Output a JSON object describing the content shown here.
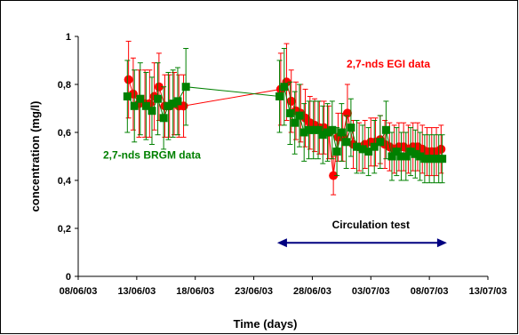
{
  "chart_data": {
    "type": "scatter",
    "xlabel": "Time (days)",
    "ylabel": "concentration (mg/l)",
    "x_tick_labels": [
      "08/06/03",
      "13/06/03",
      "18/06/03",
      "23/06/03",
      "28/06/03",
      "03/07/03",
      "08/07/03",
      "13/07/03"
    ],
    "x_ticks": [
      0,
      5,
      10,
      15,
      20,
      25,
      30,
      35
    ],
    "xlim": [
      0,
      35
    ],
    "ylim": [
      0,
      1
    ],
    "y_ticks": [
      0,
      0.2,
      0.4,
      0.6,
      0.8,
      1
    ],
    "y_tick_labels": [
      "0",
      "0,2",
      "0,4",
      "0,6",
      "0,8",
      "1"
    ],
    "grid": false,
    "colors": {
      "egi": "#ff0000",
      "brgm": "#008000",
      "arrow": "#000080"
    },
    "series": [
      {
        "name": "2,7-nds EGI data",
        "marker": "circle",
        "connected": true,
        "x": [
          4.3,
          4.7,
          5.2,
          5.7,
          6.1,
          6.5,
          6.9,
          7.4,
          7.8,
          8.2,
          8.6,
          9.0,
          17.3,
          17.8,
          18.2,
          18.6,
          19.0,
          19.4,
          19.8,
          20.2,
          20.6,
          21.0,
          21.4,
          21.8,
          22.2,
          22.6,
          23.0,
          23.5,
          24.0,
          24.5,
          25.0,
          25.4,
          25.8,
          26.2,
          26.6,
          27.0,
          27.4,
          27.8,
          28.2,
          28.6,
          29.0,
          29.4,
          29.8,
          30.2,
          30.6,
          31.0
        ],
        "y": [
          0.82,
          0.76,
          0.72,
          0.72,
          0.72,
          0.75,
          0.79,
          0.71,
          0.71,
          0.72,
          0.71,
          0.71,
          0.78,
          0.81,
          0.73,
          0.69,
          0.68,
          0.66,
          0.64,
          0.63,
          0.62,
          0.62,
          0.6,
          0.42,
          0.58,
          0.58,
          0.68,
          0.55,
          0.54,
          0.55,
          0.56,
          0.56,
          0.57,
          0.55,
          0.54,
          0.53,
          0.54,
          0.54,
          0.53,
          0.54,
          0.54,
          0.53,
          0.52,
          0.52,
          0.52,
          0.53
        ],
        "err": [
          0.16,
          0.15,
          0.14,
          0.14,
          0.14,
          0.14,
          0.14,
          0.13,
          0.13,
          0.13,
          0.13,
          0.13,
          0.15,
          0.16,
          0.13,
          0.12,
          0.12,
          0.12,
          0.11,
          0.11,
          0.11,
          0.11,
          0.11,
          0.08,
          0.1,
          0.1,
          0.12,
          0.1,
          0.1,
          0.1,
          0.1,
          0.1,
          0.1,
          0.1,
          0.1,
          0.1,
          0.1,
          0.1,
          0.1,
          0.1,
          0.1,
          0.1,
          0.1,
          0.1,
          0.1,
          0.1
        ]
      },
      {
        "name": "2,7-nds BRGM data",
        "marker": "square",
        "connected": true,
        "x": [
          4.2,
          4.8,
          5.3,
          5.8,
          6.3,
          6.8,
          7.3,
          7.7,
          8.1,
          8.5,
          9.2,
          17.2,
          17.6,
          18.1,
          18.5,
          18.9,
          19.3,
          19.7,
          20.1,
          20.5,
          20.9,
          21.3,
          21.7,
          22.1,
          22.5,
          22.9,
          23.3,
          23.8,
          24.3,
          24.8,
          25.3,
          25.8,
          26.3,
          26.8,
          27.2,
          27.6,
          28.0,
          28.4,
          28.8,
          29.2,
          29.6,
          30.0,
          30.4,
          30.8,
          31.1
        ],
        "y": [
          0.75,
          0.71,
          0.74,
          0.71,
          0.69,
          0.74,
          0.66,
          0.71,
          0.72,
          0.73,
          0.79,
          0.75,
          0.79,
          0.68,
          0.64,
          0.67,
          0.6,
          0.61,
          0.61,
          0.61,
          0.59,
          0.6,
          0.61,
          0.52,
          0.6,
          0.56,
          0.62,
          0.54,
          0.53,
          0.52,
          0.54,
          0.56,
          0.61,
          0.5,
          0.52,
          0.5,
          0.5,
          0.52,
          0.51,
          0.5,
          0.49,
          0.49,
          0.49,
          0.49,
          0.49
        ],
        "err": [
          0.15,
          0.15,
          0.15,
          0.14,
          0.14,
          0.15,
          0.13,
          0.14,
          0.14,
          0.14,
          0.16,
          0.15,
          0.16,
          0.13,
          0.13,
          0.13,
          0.12,
          0.12,
          0.12,
          0.12,
          0.12,
          0.12,
          0.12,
          0.1,
          0.12,
          0.11,
          0.12,
          0.11,
          0.1,
          0.1,
          0.11,
          0.11,
          0.12,
          0.1,
          0.1,
          0.1,
          0.1,
          0.1,
          0.1,
          0.1,
          0.1,
          0.1,
          0.1,
          0.1,
          0.1
        ]
      }
    ],
    "annotations": [
      {
        "text": "2,7-nds EGI data",
        "color": "#ff0000",
        "x": 26.5,
        "y": 0.87
      },
      {
        "text": "2,7-nds BRGM data",
        "color": "#008000",
        "x": 6.3,
        "y": 0.49
      },
      {
        "text": "Circulation test",
        "color": "#000000",
        "x": 25.0,
        "y": 0.2
      }
    ],
    "circulation_test": {
      "start": 17.0,
      "end": 31.5,
      "y": 0.14
    }
  }
}
